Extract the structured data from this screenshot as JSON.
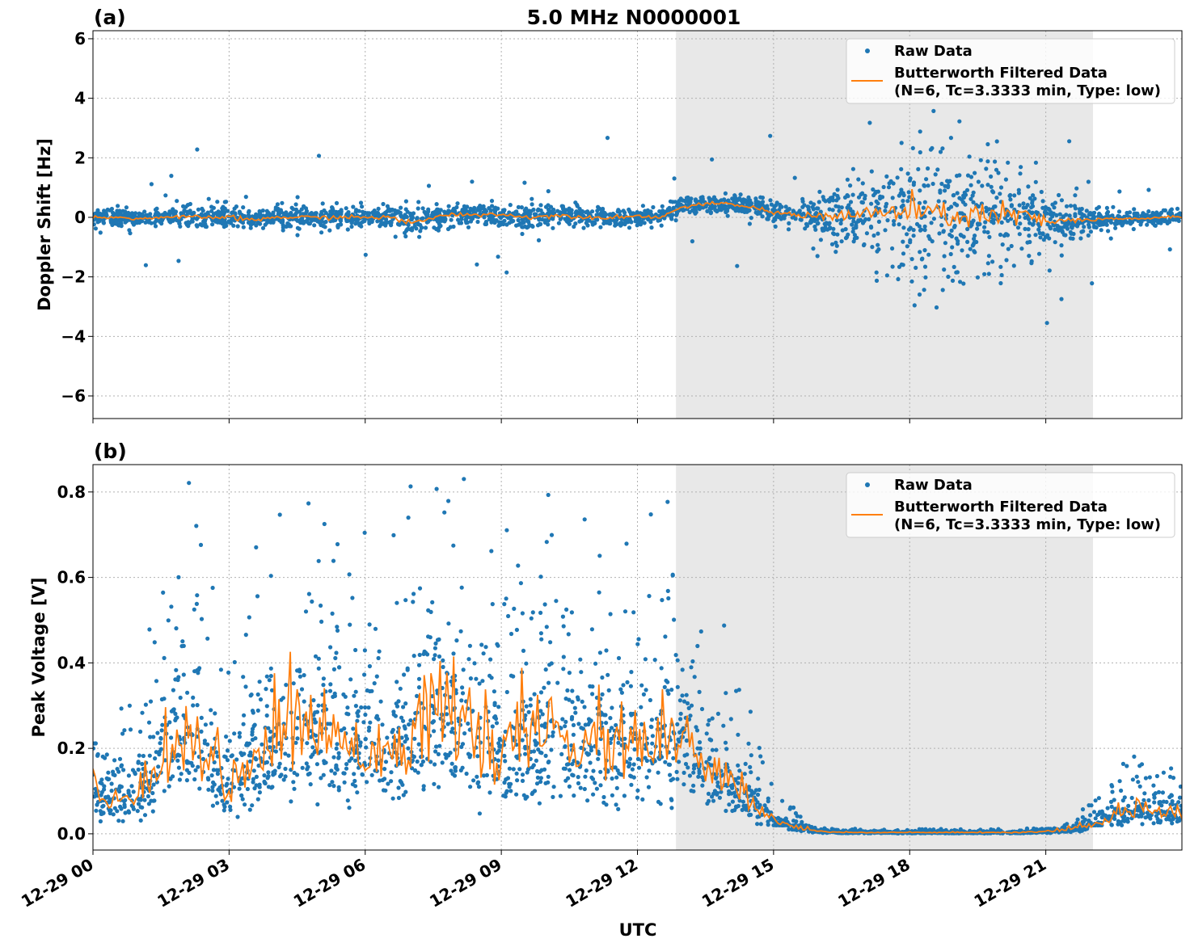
{
  "chart_data": [
    {
      "type": "scatter",
      "panel_label": "(a)",
      "title": "5.0 MHz N0000001",
      "xlabel": "",
      "ylabel": "Doppler Shift [Hz]",
      "ylim": [
        -6.76,
        6.27
      ],
      "xlim_hours": [
        0,
        24
      ],
      "yticks": [
        6,
        4,
        2,
        0,
        -2,
        -4,
        -6
      ],
      "ytick_labels": [
        "6",
        "4",
        "2",
        "0",
        "−2",
        "−4",
        "−6"
      ],
      "grid": true,
      "legend_position": "top-right",
      "legend": [
        "Raw Data",
        "Butterworth Filtered Data",
        "(N=6, Tc=3.3333 min, Type: low)"
      ],
      "shaded_region_hours": [
        12.85,
        22.04
      ],
      "hours": [
        0,
        0.5,
        1,
        1.5,
        2,
        2.5,
        3,
        3.5,
        4,
        4.5,
        5,
        5.5,
        6,
        6.5,
        7,
        7.5,
        8,
        8.5,
        9,
        9.5,
        10,
        10.5,
        11,
        11.5,
        12,
        12.5,
        13,
        13.5,
        14,
        14.5,
        15,
        15.5,
        16,
        16.5,
        17,
        17.5,
        18,
        18.5,
        19,
        19.5,
        20,
        20.5,
        21,
        21.5,
        22,
        22.5,
        23,
        23.5,
        24
      ],
      "filtered": [
        0,
        0,
        -0.05,
        0,
        0,
        0,
        0,
        -0.1,
        0,
        0,
        0,
        0,
        0,
        0,
        -0.2,
        0,
        0.1,
        0.1,
        0.1,
        0,
        0.05,
        0.05,
        0,
        0,
        0.05,
        0,
        0.35,
        0.45,
        0.45,
        0.35,
        0.15,
        0.1,
        0.05,
        0.05,
        0.1,
        0.15,
        0.2,
        0.1,
        0.05,
        0.1,
        0.05,
        0.1,
        -0.2,
        -0.1,
        -0.1,
        -0.05,
        -0.05,
        0,
        0
      ],
      "raw_spread": [
        0.2,
        0.2,
        0.2,
        0.2,
        0.3,
        0.3,
        0.3,
        0.35,
        0.3,
        0.3,
        0.3,
        0.3,
        0.3,
        0.3,
        0.5,
        0.3,
        0.3,
        0.3,
        0.3,
        0.3,
        0.3,
        0.3,
        0.3,
        0.25,
        0.25,
        0.2,
        0.25,
        0.25,
        0.25,
        0.25,
        0.3,
        0.4,
        0.6,
        0.9,
        1.2,
        1.6,
        1.9,
        2.0,
        2.0,
        1.9,
        1.7,
        1.4,
        0.9,
        0.5,
        0.3,
        0.25,
        0.2,
        0.2,
        0.2
      ]
    },
    {
      "type": "scatter",
      "panel_label": "(b)",
      "xlabel": "UTC",
      "ylabel": "Peak Voltage [V]",
      "ylim": [
        -0.038,
        0.864
      ],
      "xlim_hours": [
        0,
        24
      ],
      "yticks": [
        0.8,
        0.6,
        0.4,
        0.2,
        0.0
      ],
      "ytick_labels": [
        "0.8",
        "0.6",
        "0.4",
        "0.2",
        "0.0"
      ],
      "xtick_labels": [
        "12-29 00",
        "12-29 03",
        "12-29 06",
        "12-29 09",
        "12-29 12",
        "12-29 15",
        "12-29 18",
        "12-29 21"
      ],
      "xticks_hours": [
        0,
        3,
        6,
        9,
        12,
        15,
        18,
        21
      ],
      "grid": true,
      "legend_position": "top-right",
      "legend": [
        "Raw Data",
        "Butterworth Filtered Data",
        "(N=6, Tc=3.3333 min, Type: low)"
      ],
      "shaded_region_hours": [
        12.85,
        22.04
      ],
      "hours": [
        0,
        0.5,
        1,
        1.5,
        2,
        2.5,
        3,
        3.5,
        4,
        4.5,
        5,
        5.5,
        6,
        6.5,
        7,
        7.5,
        8,
        8.5,
        9,
        9.5,
        10,
        10.5,
        11,
        11.5,
        12,
        12.5,
        13,
        13.5,
        14,
        14.5,
        15,
        15.5,
        16,
        16.5,
        17,
        17.5,
        18,
        18.5,
        19,
        19.5,
        20,
        20.5,
        21,
        21.5,
        22,
        22.5,
        23,
        23.5,
        24
      ],
      "filtered": [
        0.1,
        0.08,
        0.09,
        0.18,
        0.24,
        0.2,
        0.1,
        0.18,
        0.22,
        0.24,
        0.25,
        0.22,
        0.2,
        0.2,
        0.22,
        0.28,
        0.25,
        0.22,
        0.2,
        0.2,
        0.25,
        0.22,
        0.2,
        0.2,
        0.21,
        0.22,
        0.2,
        0.15,
        0.12,
        0.08,
        0.03,
        0.015,
        0.006,
        0.004,
        0.003,
        0.003,
        0.003,
        0.003,
        0.003,
        0.003,
        0.003,
        0.003,
        0.005,
        0.01,
        0.02,
        0.04,
        0.06,
        0.06,
        0.05
      ]
    }
  ],
  "colors": {
    "raw": "#1f77b4",
    "filtered": "#ff7f0e",
    "shade": "#e8e8e8"
  }
}
